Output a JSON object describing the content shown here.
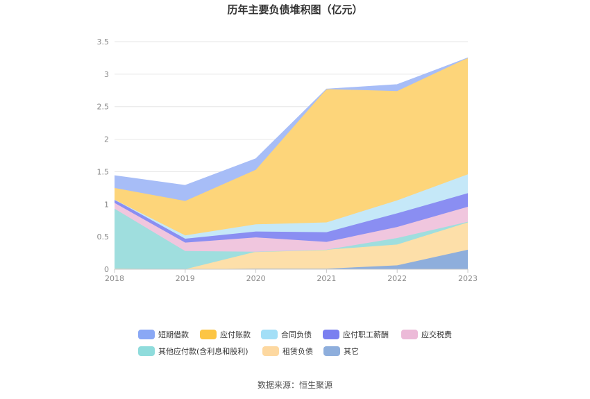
{
  "chart_data": {
    "type": "area",
    "stacked": true,
    "title": "历年主要负债堆积图（亿元）",
    "categories": [
      "2018",
      "2019",
      "2020",
      "2021",
      "2022",
      "2023"
    ],
    "ylim": [
      0,
      3.5
    ],
    "yticks": [
      "0",
      "0.5",
      "1",
      "1.5",
      "2",
      "2.5",
      "3",
      "3.5"
    ],
    "xlabel": "",
    "ylabel": "",
    "grid": true,
    "legend_position": "bottom",
    "series": [
      {
        "name": "其它",
        "color": "#8eaedc",
        "values": [
          0.01,
          0.0,
          0.01,
          0.01,
          0.06,
          0.3
        ]
      },
      {
        "name": "租赁负债",
        "color": "#fddfa9",
        "values": [
          0.0,
          0.0,
          0.26,
          0.29,
          0.32,
          0.42
        ]
      },
      {
        "name": "其他应付款(含利息和股利)",
        "color": "#9fdede",
        "values": [
          0.92,
          0.28,
          0.0,
          0.0,
          0.1,
          0.01
        ]
      },
      {
        "name": "应交税费",
        "color": "#f0c6de",
        "values": [
          0.09,
          0.13,
          0.22,
          0.12,
          0.17,
          0.23
        ]
      },
      {
        "name": "应付职工薪酬",
        "color": "#8a8ef2",
        "values": [
          0.05,
          0.06,
          0.09,
          0.15,
          0.21,
          0.21
        ]
      },
      {
        "name": "合同负债",
        "color": "#c5e8f8",
        "values": [
          0.0,
          0.05,
          0.11,
          0.15,
          0.2,
          0.29
        ]
      },
      {
        "name": "应付账款",
        "color": "#fdd57a",
        "values": [
          0.18,
          0.53,
          0.84,
          2.05,
          1.68,
          1.79
        ]
      },
      {
        "name": "短期借款",
        "color": "#a7bdf7",
        "values": [
          0.19,
          0.24,
          0.17,
          0.0,
          0.1,
          0.0
        ]
      }
    ],
    "legend": [
      {
        "name": "短期借款",
        "color": "#8aa8f5"
      },
      {
        "name": "应付账款",
        "color": "#fcc544"
      },
      {
        "name": "合同负债",
        "color": "#a3dff7"
      },
      {
        "name": "应付职工薪酬",
        "color": "#7a7ff0"
      },
      {
        "name": "应交税费",
        "color": "#ecbad8"
      },
      {
        "name": "其他应付款(含利息和股利)",
        "color": "#8fdcdc"
      },
      {
        "name": "租赁负债",
        "color": "#fdd8a0"
      },
      {
        "name": "其它",
        "color": "#8eaedc"
      }
    ]
  },
  "footer": {
    "source": "数据来源：恒生聚源"
  }
}
